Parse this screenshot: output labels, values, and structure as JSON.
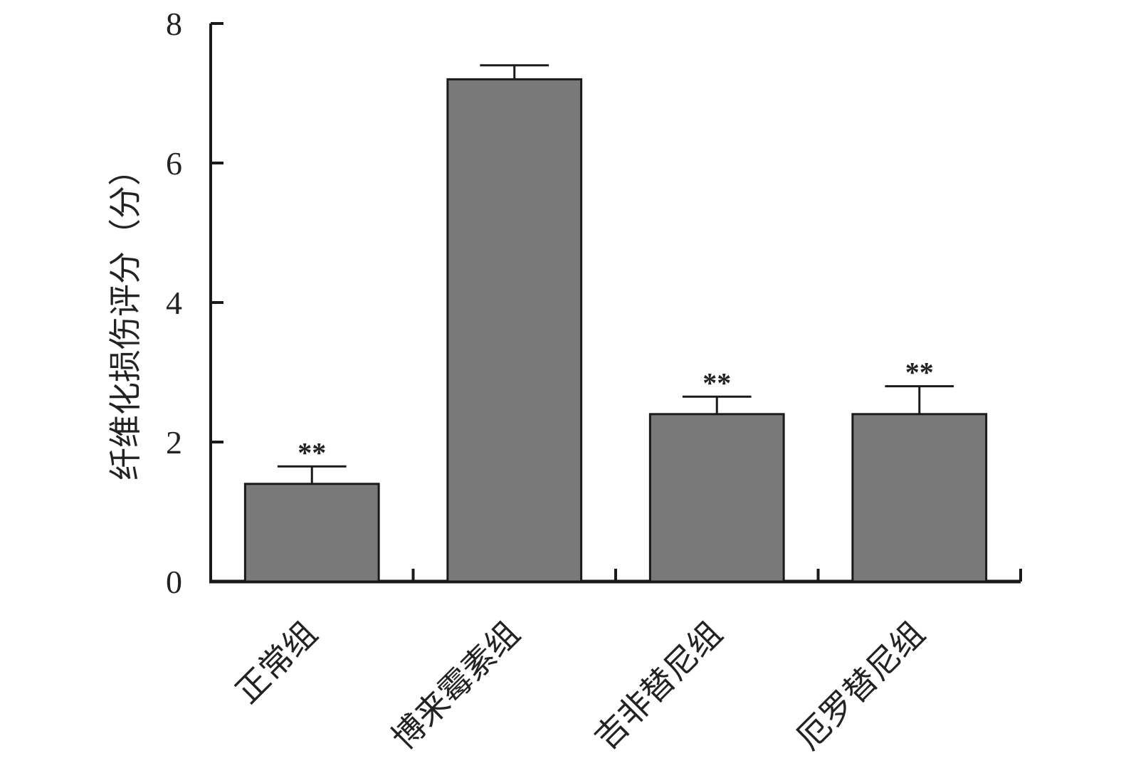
{
  "chart_data": {
    "type": "bar",
    "ylabel": "纤维化损伤评分（分）",
    "ylim": [
      0,
      8
    ],
    "yticks": [
      0,
      2,
      4,
      6,
      8
    ],
    "categories": [
      "正常组",
      "博来霉素组",
      "吉非替尼组",
      "厄罗替尼组"
    ],
    "values": [
      1.4,
      7.2,
      2.4,
      2.4
    ],
    "errors": [
      0.25,
      0.2,
      0.25,
      0.4
    ],
    "annotations": [
      "**",
      "",
      "**",
      "**"
    ],
    "bar_color": "#7a797a",
    "grid": false
  }
}
